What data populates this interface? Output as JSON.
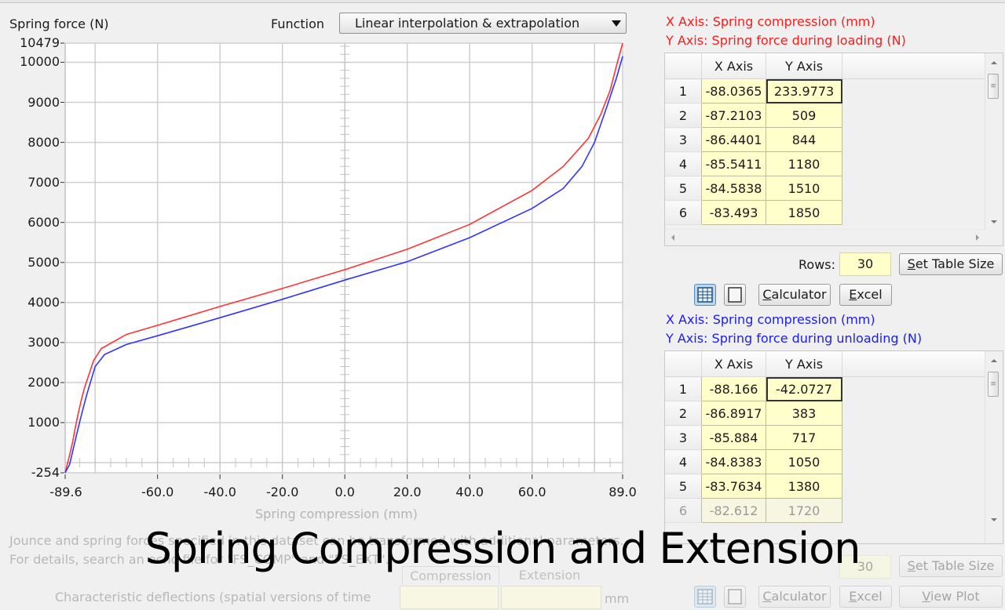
{
  "chart_panel": {
    "y_axis_title": "Spring force (N)",
    "function_label": "Function",
    "function_select": "Linear interpolation & extrapolation",
    "x_axis_title": "Spring compression (mm)"
  },
  "chart_data": {
    "type": "line",
    "title": "",
    "xlabel": "Spring compression (mm)",
    "ylabel": "Spring force (N)",
    "xlim": [
      -89.6,
      89.0
    ],
    "ylim": [
      -254,
      10479
    ],
    "x_ticks": [
      "-89.6",
      "-60.0",
      "-40.0",
      "-20.0",
      "0.0",
      "20.0",
      "40.0",
      "60.0",
      "89.0"
    ],
    "y_ticks": [
      "10479",
      "10000",
      "9000",
      "8000",
      "7000",
      "6000",
      "5000",
      "4000",
      "3000",
      "2000",
      "1000",
      "-254"
    ],
    "grid": true,
    "legend": "none",
    "series": [
      {
        "name": "Spring force during loading",
        "color": "#ff3333",
        "x": [
          -89.6,
          -88.0365,
          -87.2103,
          -86.4401,
          -85.5411,
          -84.5838,
          -83.493,
          -80.5,
          -78.0,
          -70.0,
          -60.0,
          -40.0,
          -20.0,
          0.0,
          20.0,
          40.0,
          60.0,
          70.0,
          78.0,
          82.0,
          85.0,
          87.0,
          89.0
        ],
        "y": [
          -254,
          233.9773,
          509,
          844,
          1180,
          1510,
          1850,
          2550,
          2850,
          3200,
          3430,
          3900,
          4350,
          4820,
          5330,
          5950,
          6800,
          7400,
          8100,
          8700,
          9300,
          9900,
          10479
        ]
      },
      {
        "name": "Spring force during unloading",
        "color": "#3333ff",
        "x": [
          -89.6,
          -88.166,
          -86.8917,
          -85.884,
          -84.8383,
          -83.7634,
          -82.612,
          -80.0,
          -77.0,
          -70.0,
          -60.0,
          -40.0,
          -20.0,
          0.0,
          20.0,
          40.0,
          60.0,
          70.0,
          76.0,
          80.0,
          84.0,
          87.0,
          89.0
        ],
        "y": [
          -254,
          -42.0727,
          383,
          717,
          1050,
          1380,
          1720,
          2400,
          2700,
          2950,
          3170,
          3620,
          4080,
          4560,
          5020,
          5620,
          6350,
          6850,
          7400,
          8000,
          8900,
          9600,
          10150
        ]
      }
    ]
  },
  "loading_table": {
    "x_axis_header": "X Axis: Spring compression (mm)",
    "y_axis_header": "Y Axis: Spring force during loading (N)",
    "columns": [
      "X Axis",
      "Y Axis"
    ],
    "rows": [
      {
        "n": "1",
        "x": "-88.0365",
        "y": "233.9773"
      },
      {
        "n": "2",
        "x": "-87.2103",
        "y": "509"
      },
      {
        "n": "3",
        "x": "-86.4401",
        "y": "844"
      },
      {
        "n": "4",
        "x": "-85.5411",
        "y": "1180"
      },
      {
        "n": "5",
        "x": "-84.5838",
        "y": "1510"
      },
      {
        "n": "6",
        "x": "-83.493",
        "y": "1850"
      }
    ],
    "rows_label": "Rows:",
    "rows_value": "30",
    "set_table_size": "Set Table Size",
    "calculator": "Calculator",
    "excel": "Excel"
  },
  "unloading_table": {
    "x_axis_header": "X Axis: Spring compression (mm)",
    "y_axis_header": "Y Axis: Spring force during unloading (N)",
    "columns": [
      "X Axis",
      "Y Axis"
    ],
    "rows": [
      {
        "n": "1",
        "x": "-88.166",
        "y": "-42.0727"
      },
      {
        "n": "2",
        "x": "-86.8917",
        "y": "383"
      },
      {
        "n": "3",
        "x": "-85.884",
        "y": "717"
      },
      {
        "n": "4",
        "x": "-84.8383",
        "y": "1050"
      },
      {
        "n": "5",
        "x": "-83.7634",
        "y": "1380"
      },
      {
        "n": "6",
        "x": "-82.612",
        "y": "1720"
      }
    ],
    "rows_label": "Rows:",
    "rows_value": "30",
    "set_table_size": "Set Table Size",
    "calculator": "Calculator",
    "excel": "Excel",
    "view_plot": "View Plot"
  },
  "footer": {
    "note_line1": "Jounce and spring forces specified in this dataset can be transformed with additional parameters.",
    "note_line2": "For details, search an echo file for \"FS_COMP\" and \"FS_EXT\".",
    "deflections_label": "Characteristic deflections (spatial versions of time",
    "tab_compression": "Compression",
    "tab_extension": "Extension",
    "unit": "mm"
  },
  "caption": "Spring Compression and Extension"
}
